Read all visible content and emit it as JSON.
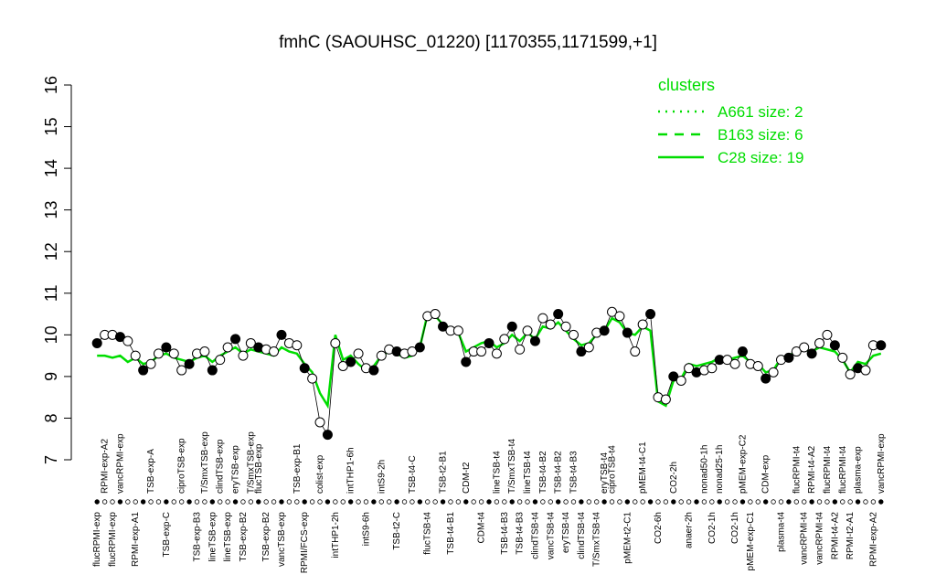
{
  "chart_data": {
    "type": "line",
    "title": "fmhC (SAOUHSC_01220) [1170355,1171599,+1]",
    "ylim": [
      7,
      16
    ],
    "yticks": [
      7,
      8,
      9,
      10,
      11,
      12,
      13,
      14,
      15,
      16
    ],
    "legend_title": "clusters",
    "legend_position": "top-right",
    "categories": [
      "flucRPMI-exp",
      null,
      "flucRPMI-exp",
      null,
      null,
      "RPMI-exp-A1",
      null,
      null,
      null,
      "TSB-exp-C",
      null,
      null,
      null,
      "TSB-exp-B3",
      null,
      "lineTSB-exp",
      null,
      "lineTSB-exp",
      null,
      "TSB-exp-B2",
      null,
      null,
      "TSB-exp-B2",
      null,
      "vancTSB-exp",
      null,
      null,
      "RPMI/FCS-exp",
      null,
      null,
      null,
      "intTHP1-2h",
      null,
      null,
      null,
      "intS9-6h",
      null,
      null,
      null,
      "TSB-t2-C",
      null,
      null,
      null,
      "flucTSB-t4",
      null,
      null,
      "TSB-t4-B1",
      null,
      null,
      null,
      "CDM-t4",
      null,
      null,
      "TSB-t4-B3",
      null,
      "TSB-t4-B3",
      null,
      "clindTSB-t4",
      null,
      "vancTSB-t4",
      null,
      "eryTSB-t4",
      null,
      "clindTSB-t4",
      null,
      "T/SmxTSB-t4",
      null,
      null,
      null,
      "pMEM-t2-C1",
      null,
      null,
      null,
      "CO2-6h",
      null,
      null,
      null,
      "anaer-2h",
      null,
      null,
      "CO2-1h",
      null,
      null,
      "CO2-1h",
      null,
      "pMEM-exp-C1",
      null,
      null,
      null,
      "plasma-t4",
      null,
      null,
      "vancRPMI-t4",
      null,
      "vancRPMI-t4",
      null,
      "RPMI-t4-A2",
      null,
      "RPMI-t2-A1",
      null,
      null,
      "RPMI-exp-A2",
      null
    ],
    "categories_top": [
      null,
      "RPMI-exp-A2",
      null,
      "vancRPMI-exp",
      null,
      null,
      null,
      "TSB-exp-A",
      null,
      null,
      null,
      "ciproTSB-exp",
      null,
      null,
      "T/SmxTSB-exp",
      null,
      "clindTSB-exp",
      null,
      "eryTSB-exp",
      null,
      "T/SmxTSB-exp",
      "flucTSB-exp",
      null,
      null,
      null,
      null,
      "TSB-exp-B1",
      null,
      null,
      "colist-exp",
      null,
      null,
      null,
      "intTHP1-6h",
      null,
      null,
      null,
      "intS9-2h",
      null,
      null,
      null,
      "TSB-t4-C",
      null,
      null,
      null,
      "TSB-t2-B1",
      null,
      null,
      "CDM-t2",
      null,
      null,
      null,
      "lineTSB-t4",
      null,
      "T/SmxTSB-t4",
      null,
      "lineTSB-t4",
      null,
      "TSB-t4-B2",
      null,
      "TSB-t4-B2",
      null,
      "TSB-t4-B3",
      null,
      null,
      null,
      "eryTSB-t4",
      "ciproTSB-t4",
      null,
      null,
      null,
      "pMEM-t4-C1",
      null,
      null,
      null,
      "CO2-2h",
      null,
      null,
      null,
      "nonad50-1h",
      null,
      "nonad25-1h",
      null,
      null,
      "pMEM-exp-C2",
      null,
      null,
      "CDM-exp",
      null,
      null,
      null,
      "flucRPMI-t4",
      null,
      "RPMI-t4-A2",
      null,
      "flucRPMI-t4",
      null,
      "flucRPMI-t4",
      null,
      "plasma-exp",
      null,
      null,
      "vancRPMI-exp"
    ],
    "values": [
      9.8,
      10.0,
      10.0,
      9.95,
      9.85,
      9.5,
      9.15,
      9.3,
      9.55,
      9.7,
      9.55,
      9.15,
      9.3,
      9.55,
      9.6,
      9.15,
      9.4,
      9.7,
      9.9,
      9.5,
      9.8,
      9.7,
      9.65,
      9.6,
      10.0,
      9.8,
      9.75,
      9.2,
      8.95,
      7.9,
      7.6,
      9.8,
      9.25,
      9.35,
      9.55,
      9.2,
      9.15,
      9.5,
      9.65,
      9.6,
      9.55,
      9.6,
      9.7,
      10.45,
      10.5,
      10.2,
      10.1,
      10.1,
      9.35,
      9.6,
      9.6,
      9.8,
      9.55,
      9.9,
      10.2,
      9.65,
      10.1,
      9.85,
      10.4,
      10.25,
      10.5,
      10.2,
      10.0,
      9.6,
      9.7,
      10.05,
      10.1,
      10.55,
      10.45,
      10.05,
      9.6,
      10.25,
      10.5,
      8.5,
      8.45,
      9.0,
      8.9,
      9.2,
      9.1,
      9.15,
      9.2,
      9.4,
      9.4,
      9.3,
      9.6,
      9.3,
      9.25,
      8.95,
      9.1,
      9.4,
      9.45,
      9.6,
      9.7,
      9.55,
      9.8,
      10.0,
      9.75,
      9.45,
      9.05,
      9.2,
      9.15,
      9.75,
      9.75
    ],
    "series": [
      {
        "name": "A661 size: 2",
        "color": "#00dd00",
        "dash": "dotted"
      },
      {
        "name": "B163 size: 6",
        "color": "#00dd00",
        "dash": "dashed"
      },
      {
        "name": "C28 size: 19",
        "color": "#00dd00",
        "dash": "solid",
        "values": [
          9.5,
          9.5,
          9.45,
          9.5,
          9.35,
          9.45,
          9.3,
          9.35,
          9.5,
          9.55,
          9.45,
          9.4,
          9.35,
          9.45,
          9.5,
          9.35,
          9.5,
          9.6,
          9.7,
          9.55,
          9.65,
          9.6,
          9.55,
          9.5,
          9.7,
          9.6,
          9.55,
          9.3,
          9.1,
          8.6,
          8.3,
          10.0,
          9.4,
          9.5,
          9.3,
          9.15,
          9.25,
          9.5,
          9.6,
          9.55,
          9.45,
          9.5,
          9.7,
          10.5,
          10.45,
          10.25,
          10.15,
          10.05,
          9.6,
          9.7,
          9.8,
          9.85,
          9.7,
          9.8,
          10.0,
          9.85,
          10.05,
          9.9,
          10.2,
          10.15,
          10.3,
          10.1,
          9.9,
          9.75,
          9.8,
          10.0,
          10.1,
          10.4,
          10.3,
          10.05,
          10.0,
          10.2,
          10.1,
          8.4,
          8.3,
          8.9,
          8.95,
          9.3,
          9.25,
          9.3,
          9.35,
          9.45,
          9.4,
          9.45,
          9.5,
          9.35,
          9.3,
          9.1,
          9.15,
          9.45,
          9.5,
          9.6,
          9.65,
          9.6,
          9.7,
          9.65,
          9.6,
          9.4,
          9.1,
          9.35,
          9.3,
          9.5,
          9.55
        ]
      }
    ]
  }
}
